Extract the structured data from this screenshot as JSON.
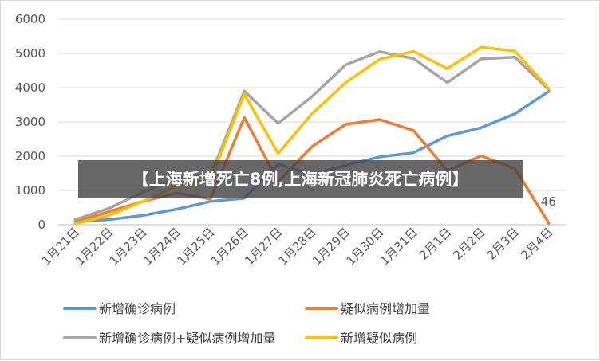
{
  "chart_data": {
    "type": "line",
    "categories": [
      "1月21日",
      "1月22日",
      "1月23日",
      "1月24日",
      "1月25日",
      "1月26日",
      "1月27日",
      "1月28日",
      "1月29日",
      "1月30日",
      "1月31日",
      "2月1日",
      "2月2日",
      "2月3日",
      "2月4日"
    ],
    "ylim": [
      0,
      6000
    ],
    "yticks": [
      0,
      1000,
      2000,
      3000,
      4000,
      5000,
      6000
    ],
    "grid": true,
    "legend_position": "bottom",
    "series": [
      {
        "name": "新增确诊病例",
        "color": "#5b9bd5",
        "values": [
          100,
          150,
          270,
          450,
          680,
          770,
          1770,
          1460,
          1740,
          1980,
          2100,
          2590,
          2830,
          3240,
          3890
        ]
      },
      {
        "name": "疑似病例增加量",
        "color": "#ed7d31",
        "values": [
          80,
          380,
          680,
          920,
          750,
          3130,
          1260,
          2280,
          2930,
          3070,
          2750,
          1580,
          2010,
          1640,
          46
        ]
      },
      {
        "name": "新增确诊病例+疑似病例增加量",
        "color": "#a5a5a5",
        "values": [
          150,
          480,
          950,
          1360,
          1430,
          3900,
          2960,
          3740,
          4670,
          5050,
          4850,
          4150,
          4840,
          4890,
          3940
        ]
      },
      {
        "name": "新增疑似病例",
        "color": "#ffc000",
        "values": [
          30,
          270,
          680,
          1120,
          1310,
          3810,
          2080,
          3240,
          4150,
          4830,
          5060,
          4560,
          5180,
          5070,
          3970
        ]
      }
    ],
    "annotations": [
      {
        "label": "46"
      }
    ]
  },
  "overlay": {
    "banner_text": "【上海新增死亡8例,上海新冠肺炎死亡病例】"
  }
}
